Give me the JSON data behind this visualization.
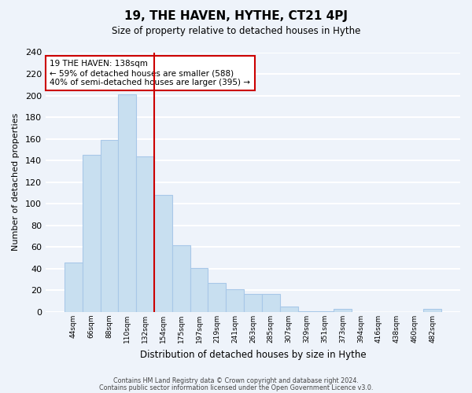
{
  "title": "19, THE HAVEN, HYTHE, CT21 4PJ",
  "subtitle": "Size of property relative to detached houses in Hythe",
  "xlabel": "Distribution of detached houses by size in Hythe",
  "ylabel": "Number of detached properties",
  "bar_color": "#c8dff0",
  "bar_edge_color": "#a8c8e8",
  "categories": [
    "44sqm",
    "66sqm",
    "88sqm",
    "110sqm",
    "132sqm",
    "154sqm",
    "175sqm",
    "197sqm",
    "219sqm",
    "241sqm",
    "263sqm",
    "285sqm",
    "307sqm",
    "329sqm",
    "351sqm",
    "373sqm",
    "394sqm",
    "416sqm",
    "438sqm",
    "460sqm",
    "482sqm"
  ],
  "values": [
    46,
    145,
    159,
    201,
    144,
    108,
    62,
    41,
    27,
    21,
    17,
    17,
    5,
    1,
    1,
    3,
    0,
    0,
    0,
    0,
    3
  ],
  "vline_index": 4,
  "vline_color": "#cc0000",
  "annotation_title": "19 THE HAVEN: 138sqm",
  "annotation_line1": "← 59% of detached houses are smaller (588)",
  "annotation_line2": "40% of semi-detached houses are larger (395) →",
  "annotation_box_color": "#ffffff",
  "annotation_box_edge": "#cc0000",
  "ylim": [
    0,
    240
  ],
  "yticks": [
    0,
    20,
    40,
    60,
    80,
    100,
    120,
    140,
    160,
    180,
    200,
    220,
    240
  ],
  "footer1": "Contains HM Land Registry data © Crown copyright and database right 2024.",
  "footer2": "Contains public sector information licensed under the Open Government Licence v3.0.",
  "background_color": "#eef3fa",
  "grid_color": "#ffffff"
}
